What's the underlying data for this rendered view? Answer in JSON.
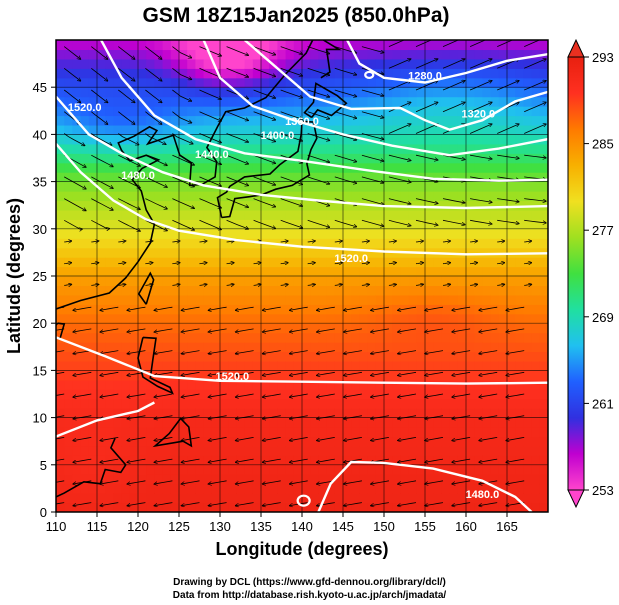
{
  "chart_data": {
    "type": "heatmap",
    "title": "GSM 18Z15Jan2025 (850.0hPa)",
    "xlabel": "Longitude (degrees)",
    "ylabel": "Latitude  (degrees)",
    "xlim": [
      110,
      170
    ],
    "ylim": [
      0,
      50
    ],
    "x_ticks": [
      "110",
      "115",
      "120",
      "125",
      "130",
      "135",
      "140",
      "145",
      "150",
      "155",
      "160",
      "165"
    ],
    "y_ticks": [
      "0",
      "5",
      "10",
      "15",
      "20",
      "25",
      "30",
      "35",
      "40",
      "45"
    ],
    "colorbar": {
      "ticks": [
        "293",
        "285",
        "277",
        "269",
        "261",
        "253"
      ],
      "min": 253,
      "max": 293,
      "colors": [
        "#ff44cc",
        "#c000d0",
        "#3030e0",
        "#2060ff",
        "#20c0f0",
        "#20e0a0",
        "#40e040",
        "#a0e020",
        "#f0e020",
        "#f8b000",
        "#ff7a00",
        "#ff3020",
        "#e82010"
      ],
      "extend": "both"
    },
    "temperature_profile": [
      {
        "lat": 0,
        "value": 292
      },
      {
        "lat": 5,
        "value": 291.5
      },
      {
        "lat": 10,
        "value": 291
      },
      {
        "lat": 15,
        "value": 289
      },
      {
        "lat": 20,
        "value": 287
      },
      {
        "lat": 25,
        "value": 284
      },
      {
        "lat": 30,
        "value": 279
      },
      {
        "lat": 35,
        "value": 275
      },
      {
        "lat": 40,
        "value": 268
      },
      {
        "lat": 45,
        "value": 262
      },
      {
        "lat": 50,
        "value": 256
      }
    ],
    "geopotential_contours": [
      {
        "value": "1280.0",
        "label_lon": 155,
        "label_lat": 45.8
      },
      {
        "value": "1320.0",
        "label_lon": 161.5,
        "label_lat": 41.8
      },
      {
        "value": "1360.0",
        "label_lon": 140,
        "label_lat": 41
      },
      {
        "value": "1400.0",
        "label_lon": 137,
        "label_lat": 39.5
      },
      {
        "value": "1440.0",
        "label_lon": 129,
        "label_lat": 37.5
      },
      {
        "value": "1480.0",
        "label_lon": 120,
        "label_lat": 35.3
      },
      {
        "value": "1520.0",
        "label_lon": 113.5,
        "label_lat": 42.5
      },
      {
        "value": "1520.0",
        "label_lon": 131.5,
        "label_lat": 14
      },
      {
        "value": "1520.0",
        "label_lon": 146,
        "label_lat": 26.5
      },
      {
        "value": "1480.0",
        "label_lon": 162,
        "label_lat": 1.5
      }
    ]
  },
  "credits": {
    "line1": "Drawing by DCL (https://www.gfd-dennou.org/library/dcl/)",
    "line2": "Data from http://database.rish.kyoto-u.ac.jp/arch/jmadata/"
  }
}
